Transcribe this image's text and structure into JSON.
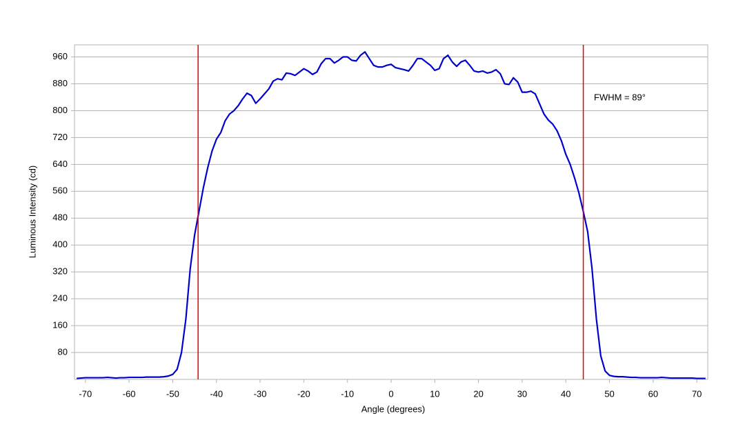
{
  "chart_data": {
    "type": "line",
    "xlabel": "Angle (degrees)",
    "ylabel": "Luminous Intensity (cd)",
    "annotation": "FWHM = 89°",
    "xlim": [
      -72.5,
      72.5
    ],
    "ylim": [
      0,
      996
    ],
    "xticks": [
      -70,
      -60,
      -50,
      -40,
      -30,
      -20,
      -10,
      0,
      10,
      20,
      30,
      40,
      50,
      60,
      70
    ],
    "yticks": [
      80,
      160,
      240,
      320,
      400,
      480,
      560,
      640,
      720,
      800,
      880,
      960
    ],
    "grid": true,
    "vlines": {
      "x": [
        -44.2,
        44.0
      ],
      "color": "#e00000"
    },
    "x": [
      -72,
      -71,
      -70,
      -69,
      -68,
      -67,
      -66,
      -65,
      -64,
      -63,
      -62,
      -61,
      -60,
      -59,
      -58,
      -57,
      -56,
      -55,
      -54,
      -53,
      -52,
      -51,
      -50,
      -49,
      -48,
      -47,
      -46,
      -45,
      -44,
      -43,
      -42,
      -41,
      -40,
      -39,
      -38,
      -37,
      -36,
      -35,
      -34,
      -33,
      -32,
      -31,
      -30,
      -29,
      -28,
      -27,
      -26,
      -25,
      -24,
      -23,
      -22,
      -21,
      -20,
      -19,
      -18,
      -17,
      -16,
      -15,
      -14,
      -13,
      -12,
      -11,
      -10,
      -9,
      -8,
      -7,
      -6,
      -5,
      -4,
      -3,
      -2,
      -1,
      0,
      1,
      2,
      3,
      4,
      5,
      6,
      7,
      8,
      9,
      10,
      11,
      12,
      13,
      14,
      15,
      16,
      17,
      18,
      19,
      20,
      21,
      22,
      23,
      24,
      25,
      26,
      27,
      28,
      29,
      30,
      31,
      32,
      33,
      34,
      35,
      36,
      37,
      38,
      39,
      40,
      41,
      42,
      43,
      44,
      45,
      46,
      47,
      48,
      49,
      50,
      51,
      52,
      53,
      54,
      55,
      56,
      57,
      58,
      59,
      60,
      61,
      62,
      63,
      64,
      65,
      66,
      67,
      68,
      69,
      70,
      71,
      72
    ],
    "series": [
      {
        "name": "Luminous Intensity",
        "color": "#0000cc",
        "values": [
          3,
          4,
          5,
          5,
          5,
          5,
          5,
          6,
          5,
          4,
          5,
          5,
          6,
          6,
          6,
          6,
          7,
          7,
          7,
          7,
          8,
          10,
          15,
          30,
          80,
          180,
          330,
          430,
          500,
          570,
          630,
          680,
          715,
          735,
          770,
          790,
          800,
          815,
          835,
          852,
          845,
          822,
          835,
          850,
          865,
          888,
          895,
          892,
          912,
          910,
          905,
          915,
          925,
          918,
          908,
          915,
          940,
          955,
          955,
          942,
          950,
          960,
          960,
          950,
          948,
          965,
          975,
          955,
          935,
          930,
          930,
          935,
          938,
          928,
          925,
          922,
          918,
          935,
          955,
          955,
          945,
          935,
          920,
          925,
          955,
          965,
          945,
          932,
          945,
          950,
          935,
          918,
          915,
          918,
          912,
          915,
          922,
          910,
          880,
          878,
          898,
          885,
          855,
          855,
          858,
          850,
          820,
          790,
          772,
          760,
          740,
          710,
          670,
          640,
          600,
          555,
          500,
          440,
          330,
          180,
          70,
          25,
          12,
          9,
          8,
          8,
          7,
          6,
          6,
          5,
          5,
          5,
          5,
          5,
          6,
          5,
          4,
          4,
          4,
          4,
          4,
          4,
          3,
          3,
          3
        ]
      }
    ]
  }
}
